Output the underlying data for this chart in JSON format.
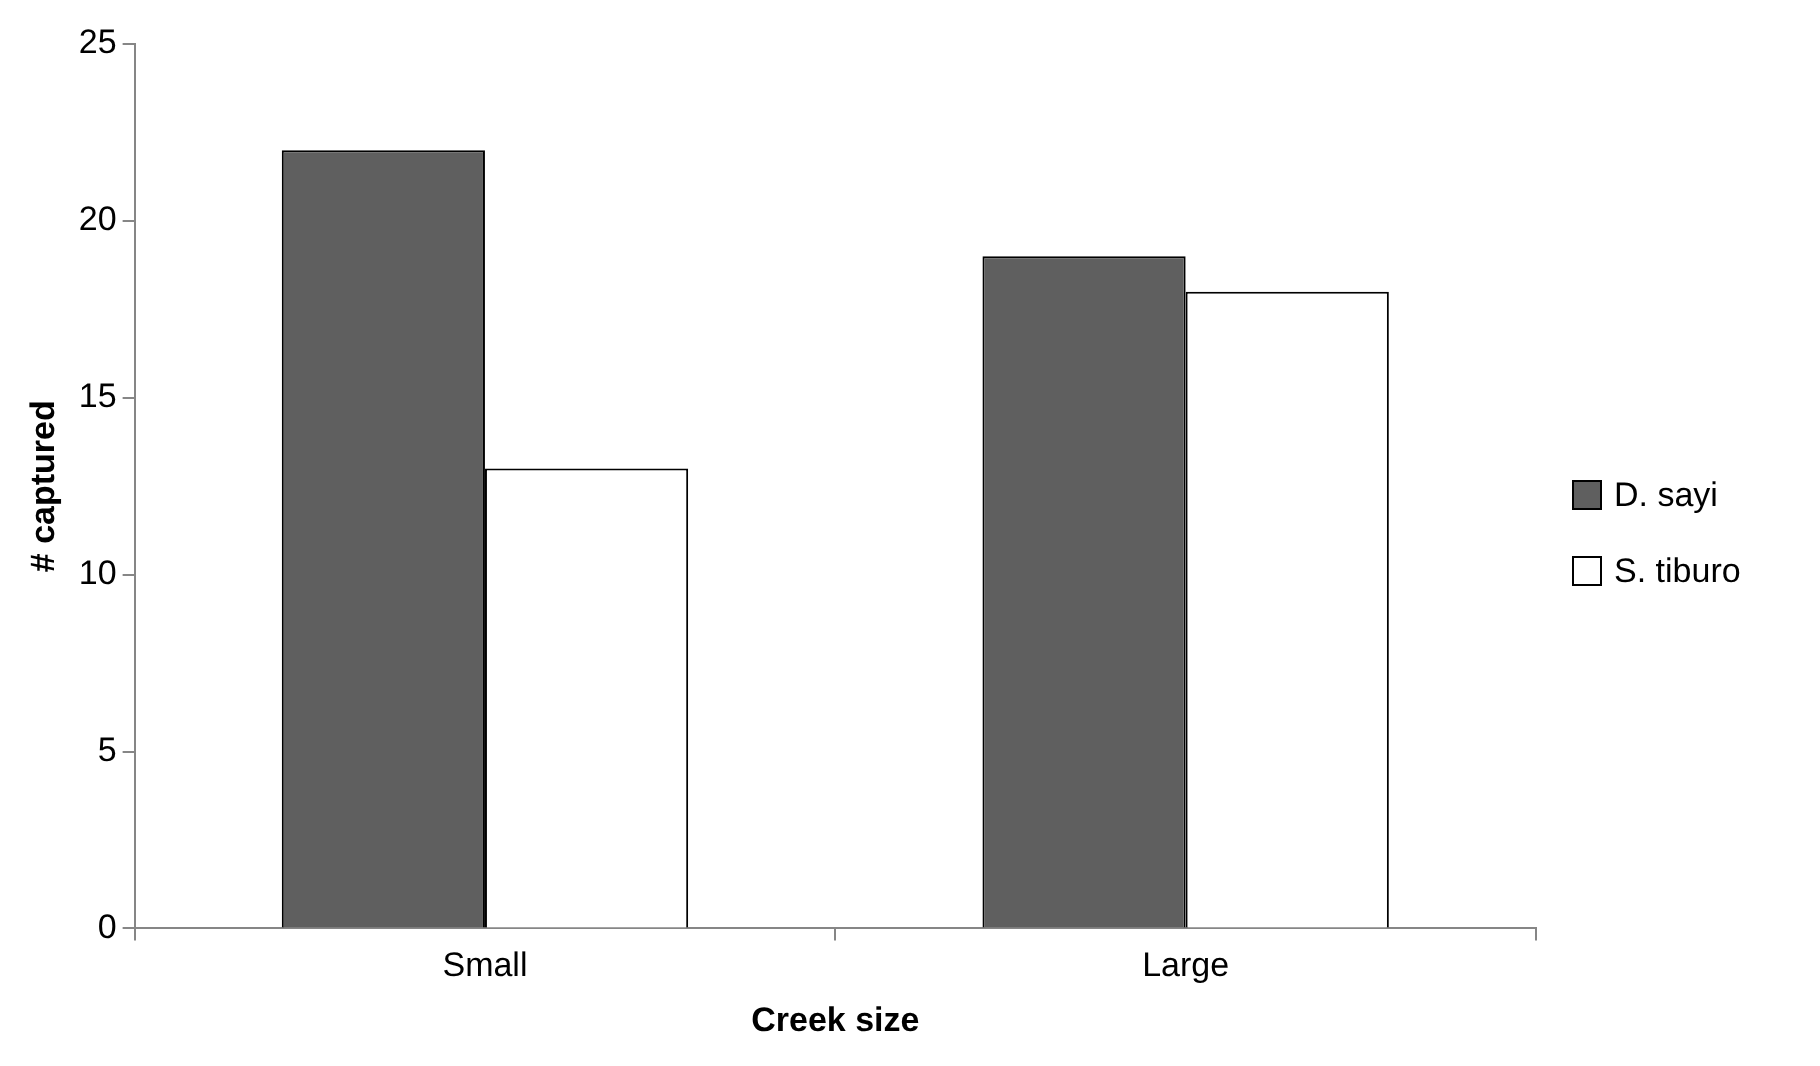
{
  "chart_data": {
    "type": "bar",
    "xlabel": "Creek size",
    "ylabel": "# captured",
    "categories": [
      "Small",
      "Large"
    ],
    "series": [
      {
        "name": "D. sayi",
        "color": "#5f5f5f",
        "values": [
          22,
          19
        ]
      },
      {
        "name": "S. tiburo",
        "color": "#ffffff",
        "values": [
          13,
          18
        ]
      }
    ],
    "ylim": [
      0,
      25
    ],
    "yticks": [
      0,
      5,
      10,
      15,
      20,
      25
    ],
    "grid": false,
    "legend": "right"
  }
}
